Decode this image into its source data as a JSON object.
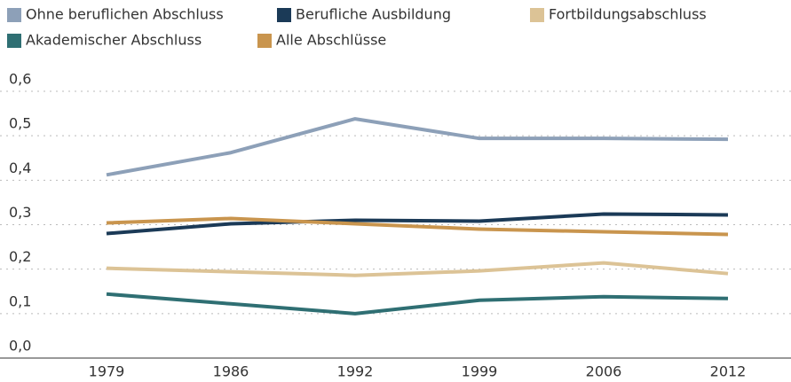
{
  "chart_data": {
    "type": "line",
    "categories": [
      "1979",
      "1986",
      "1992",
      "1999",
      "2006",
      "2012"
    ],
    "series": [
      {
        "name": "Ohne beruflichen Abschluss",
        "color": "#8da0b8",
        "values": [
          0.412,
          0.462,
          0.538,
          0.494,
          0.494,
          0.492
        ]
      },
      {
        "name": "Berufliche Ausbildung",
        "color": "#1b3a57",
        "values": [
          0.28,
          0.302,
          0.31,
          0.308,
          0.324,
          0.322
        ]
      },
      {
        "name": "Fortbildungsabschluss",
        "color": "#dcc396",
        "values": [
          0.202,
          0.194,
          0.186,
          0.196,
          0.214,
          0.19
        ]
      },
      {
        "name": "Akademischer Abschluss",
        "color": "#2f6f73",
        "values": [
          0.144,
          0.122,
          0.1,
          0.13,
          0.138,
          0.134
        ]
      },
      {
        "name": "Alle Abschlüsse",
        "color": "#c9954e",
        "values": [
          0.304,
          0.314,
          0.302,
          0.29,
          0.284,
          0.278
        ]
      }
    ],
    "ylim": [
      0,
      0.6
    ],
    "yticks": [
      {
        "value": 0,
        "label": "0,0"
      },
      {
        "value": 0.1,
        "label": "0,1"
      },
      {
        "value": 0.2,
        "label": "0,2"
      },
      {
        "value": 0.3,
        "label": "0,3"
      },
      {
        "value": 0.4,
        "label": "0,4"
      },
      {
        "value": 0.5,
        "label": "0,5"
      },
      {
        "value": 0.6,
        "label": "0,6"
      }
    ],
    "grid": true,
    "legend": "top"
  }
}
